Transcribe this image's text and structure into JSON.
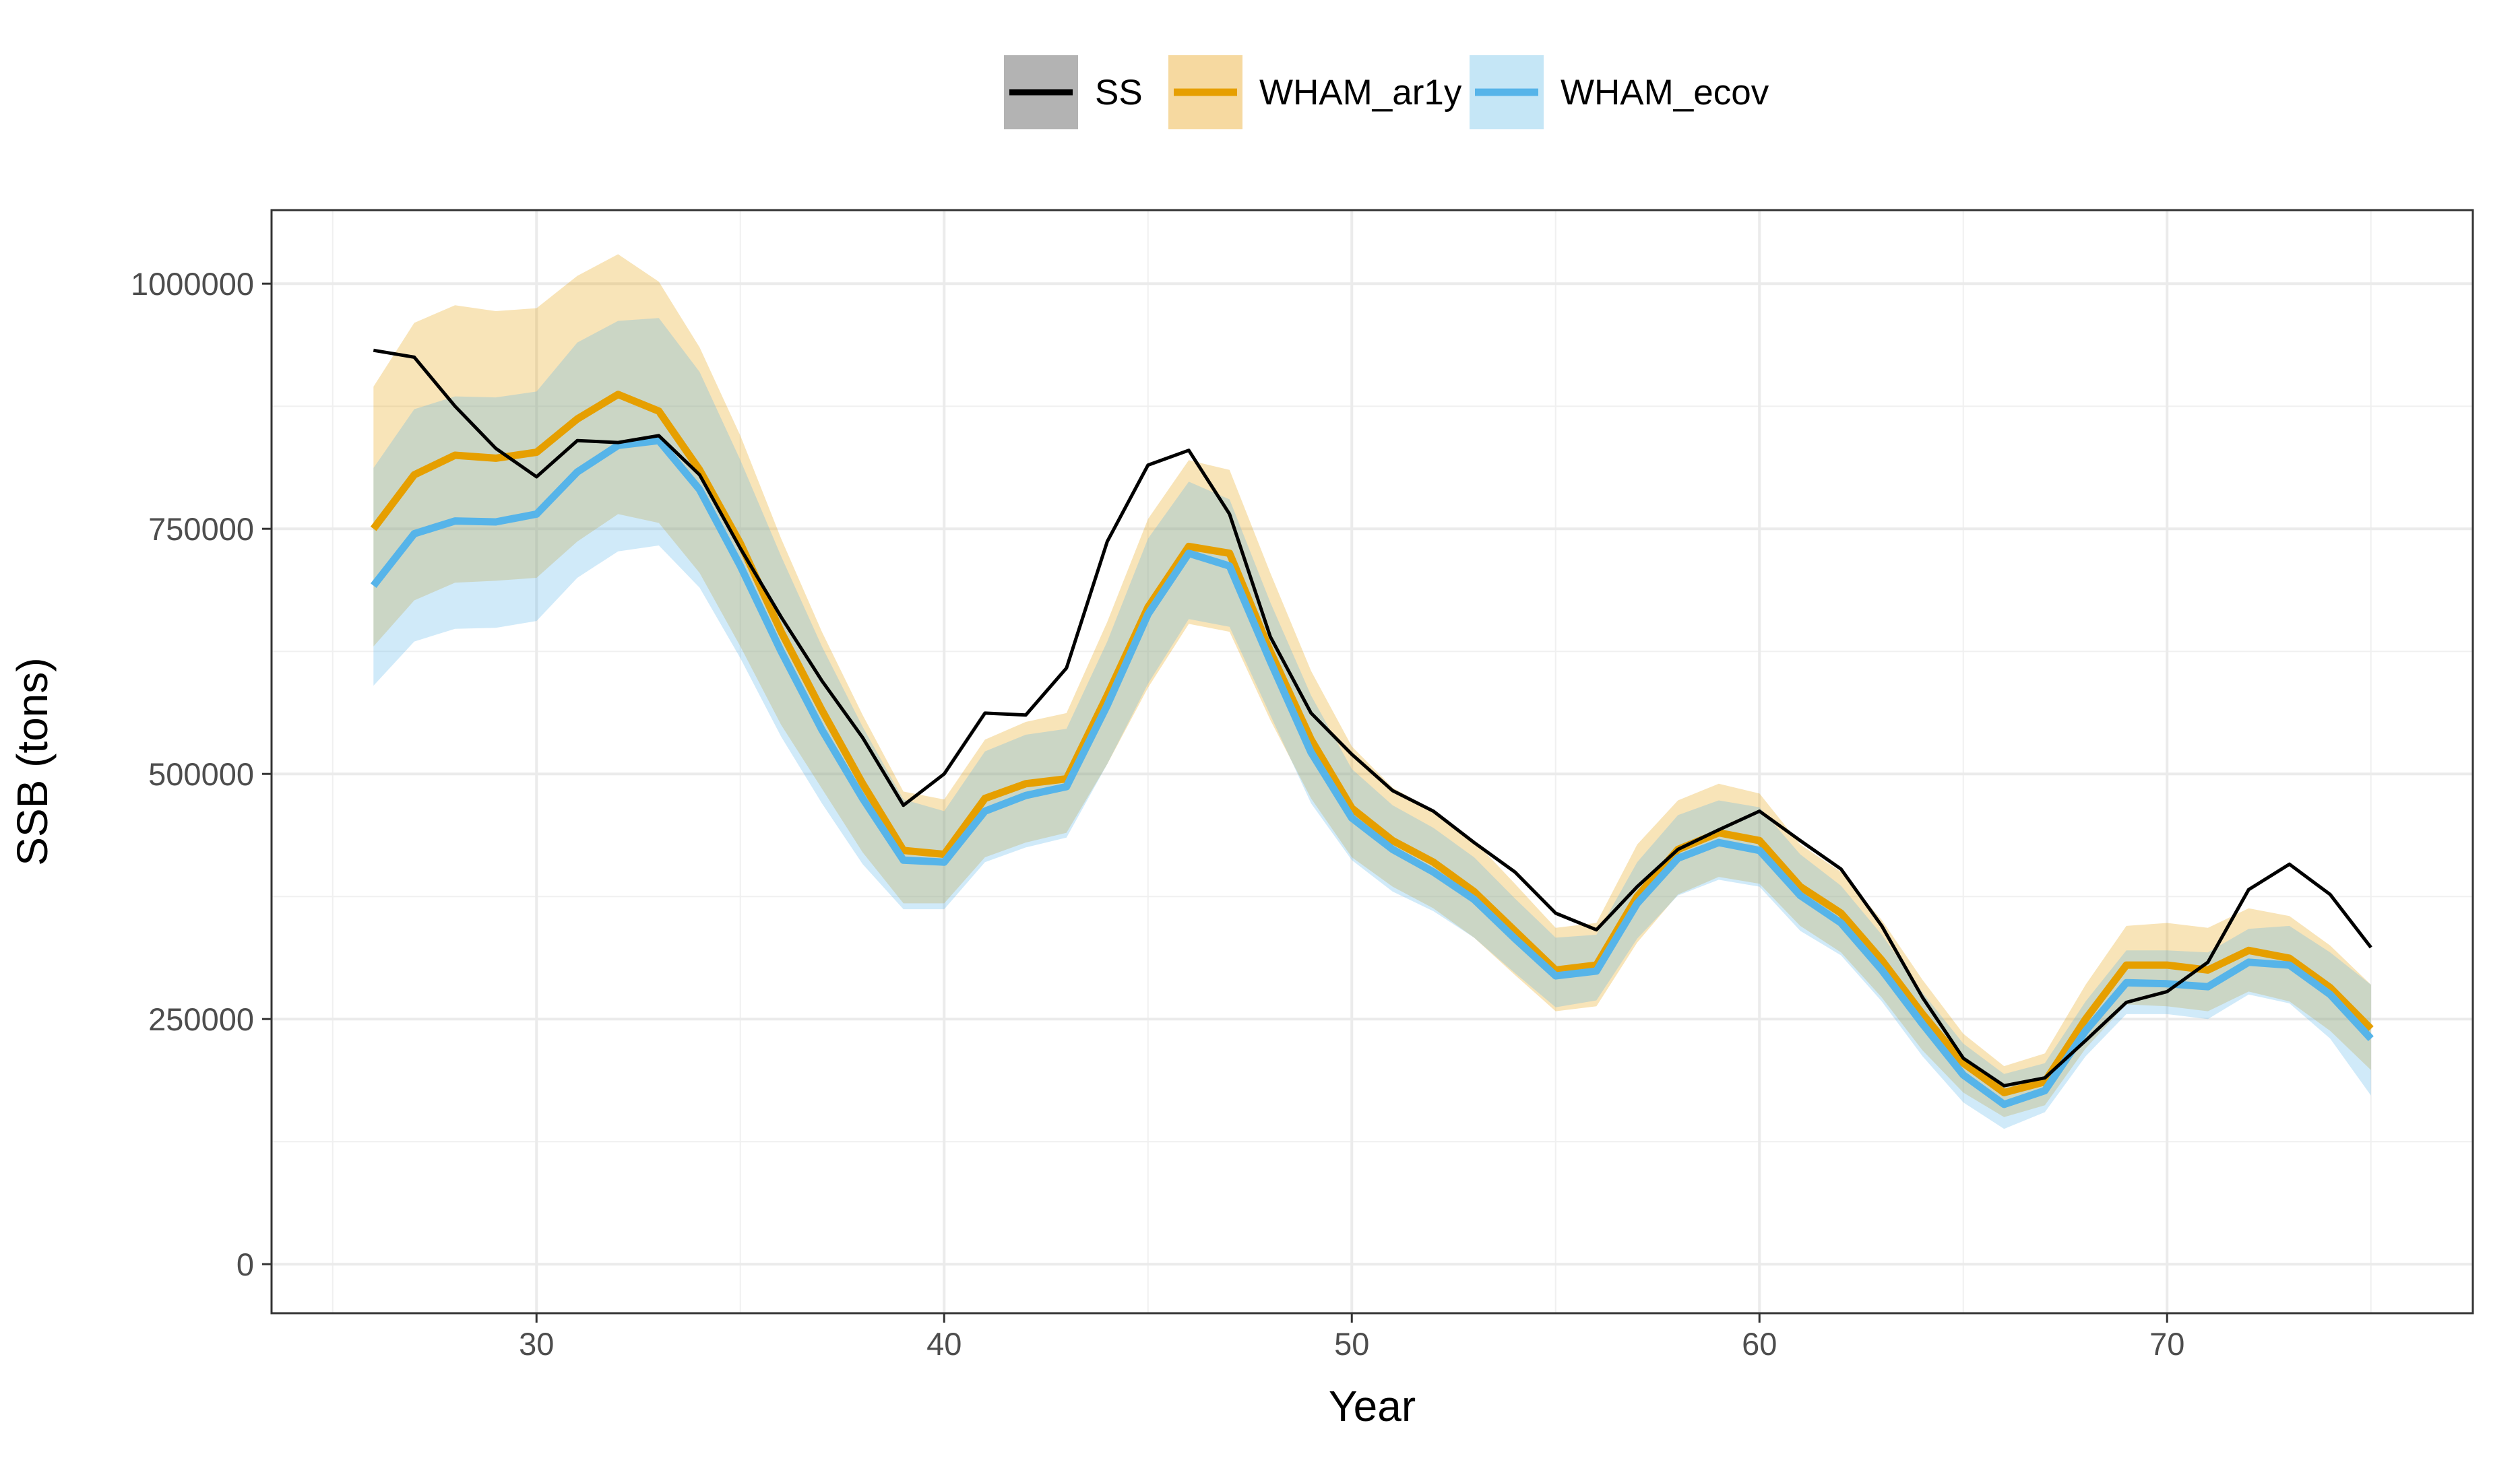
{
  "chart_data": {
    "type": "line",
    "xlabel": "Year",
    "ylabel": "SSB (tons)",
    "xlim": [
      23.5,
      77.5
    ],
    "ylim": [
      -50000,
      1075000
    ],
    "x_ticks": [
      30,
      40,
      50,
      60,
      70
    ],
    "y_ticks": [
      0,
      250000,
      500000,
      750000,
      1000000
    ],
    "y_tick_labels": [
      "0",
      "250000",
      "500000",
      "750000",
      "1000000"
    ],
    "grid": true,
    "legend_position": "top",
    "x": [
      26,
      27,
      28,
      29,
      30,
      31,
      32,
      33,
      34,
      35,
      36,
      37,
      38,
      39,
      40,
      41,
      42,
      43,
      44,
      45,
      46,
      47,
      48,
      49,
      50,
      51,
      52,
      53,
      54,
      55,
      56,
      57,
      58,
      59,
      60,
      61,
      62,
      63,
      64,
      65,
      66,
      67,
      68,
      69,
      70,
      71,
      72,
      73,
      74,
      75
    ],
    "series": [
      {
        "name": "SS",
        "color": "#000000",
        "fill": "#b3b3b3",
        "values": [
          932000,
          925000,
          875000,
          832000,
          803000,
          840000,
          838000,
          845000,
          805000,
          730000,
          660000,
          595000,
          537000,
          468000,
          500000,
          562000,
          560000,
          608000,
          737000,
          815000,
          830000,
          765000,
          640000,
          562000,
          520000,
          483000,
          462000,
          430000,
          400000,
          358000,
          341000,
          385000,
          423000,
          443000,
          462000,
          432000,
          403000,
          345000,
          272000,
          210000,
          182000,
          190000,
          228000,
          267000,
          278000,
          308000,
          382000,
          408000,
          377000,
          323000
        ]
      },
      {
        "name": "WHAM_ar1y",
        "color": "#E69F00",
        "fill": "#F6D9A0",
        "values": [
          750000,
          805000,
          825000,
          822000,
          828000,
          862000,
          887000,
          870000,
          810000,
          735000,
          645000,
          565000,
          490000,
          422000,
          418000,
          475000,
          490000,
          495000,
          580000,
          670000,
          732000,
          725000,
          625000,
          535000,
          465000,
          432000,
          410000,
          380000,
          340000,
          300000,
          305000,
          375000,
          423000,
          440000,
          432000,
          385000,
          358000,
          310000,
          255000,
          205000,
          175000,
          186000,
          250000,
          305000,
          305000,
          300000,
          320000,
          312000,
          282000,
          240000
        ],
        "lower": [
          630000,
          677000,
          695000,
          697000,
          700000,
          737000,
          765000,
          756000,
          705000,
          630000,
          550000,
          485000,
          420000,
          368000,
          368000,
          415000,
          430000,
          440000,
          510000,
          588000,
          653000,
          645000,
          555000,
          475000,
          415000,
          385000,
          363000,
          333000,
          295000,
          258000,
          263000,
          328000,
          377000,
          395000,
          388000,
          345000,
          318000,
          272000,
          218000,
          175000,
          150000,
          162000,
          220000,
          265000,
          263000,
          258000,
          278000,
          268000,
          238000,
          198000
        ],
        "upper": [
          895000,
          960000,
          978000,
          972000,
          975000,
          1008000,
          1030000,
          1002000,
          935000,
          845000,
          740000,
          645000,
          560000,
          482000,
          474000,
          535000,
          553000,
          562000,
          655000,
          760000,
          820000,
          810000,
          705000,
          605000,
          528000,
          486000,
          463000,
          432000,
          388000,
          343000,
          348000,
          428000,
          473000,
          490000,
          480000,
          428000,
          400000,
          351000,
          290000,
          235000,
          202000,
          215000,
          285000,
          345000,
          348000,
          343000,
          363000,
          355000,
          325000,
          285000
        ]
      },
      {
        "name": "WHAM_ecov",
        "color": "#56B4E9",
        "fill": "#C5E6F6",
        "values": [
          692000,
          745000,
          758000,
          757000,
          765000,
          808000,
          835000,
          840000,
          790000,
          712000,
          625000,
          545000,
          475000,
          412000,
          410000,
          462000,
          478000,
          487000,
          570000,
          663000,
          725000,
          712000,
          615000,
          522000,
          455000,
          423000,
          400000,
          372000,
          332000,
          294000,
          299000,
          368000,
          414000,
          430000,
          422000,
          376000,
          348000,
          300000,
          245000,
          193000,
          163000,
          177000,
          238000,
          287000,
          286000,
          283000,
          308000,
          305000,
          275000,
          230000
        ],
        "lower": [
          590000,
          635000,
          648000,
          649000,
          656000,
          700000,
          727000,
          733000,
          690000,
          618000,
          538000,
          470000,
          408000,
          362000,
          362000,
          410000,
          425000,
          435000,
          510000,
          592000,
          658000,
          650000,
          560000,
          470000,
          412000,
          380000,
          360000,
          333000,
          297000,
          262000,
          269000,
          332000,
          376000,
          392000,
          385000,
          340000,
          315000,
          268000,
          212000,
          165000,
          138000,
          155000,
          212000,
          255000,
          255000,
          250000,
          275000,
          266000,
          230000,
          172000
        ],
        "upper": [
          812000,
          872000,
          885000,
          884000,
          890000,
          940000,
          962000,
          965000,
          910000,
          820000,
          722000,
          630000,
          548000,
          474000,
          462000,
          523000,
          540000,
          546000,
          635000,
          740000,
          798000,
          780000,
          675000,
          580000,
          505000,
          468000,
          445000,
          415000,
          373000,
          333000,
          336000,
          410000,
          458000,
          473000,
          466000,
          418000,
          386000,
          336000,
          277000,
          225000,
          194000,
          205000,
          268000,
          320000,
          320000,
          318000,
          342000,
          345000,
          318000,
          285000
        ]
      }
    ]
  }
}
